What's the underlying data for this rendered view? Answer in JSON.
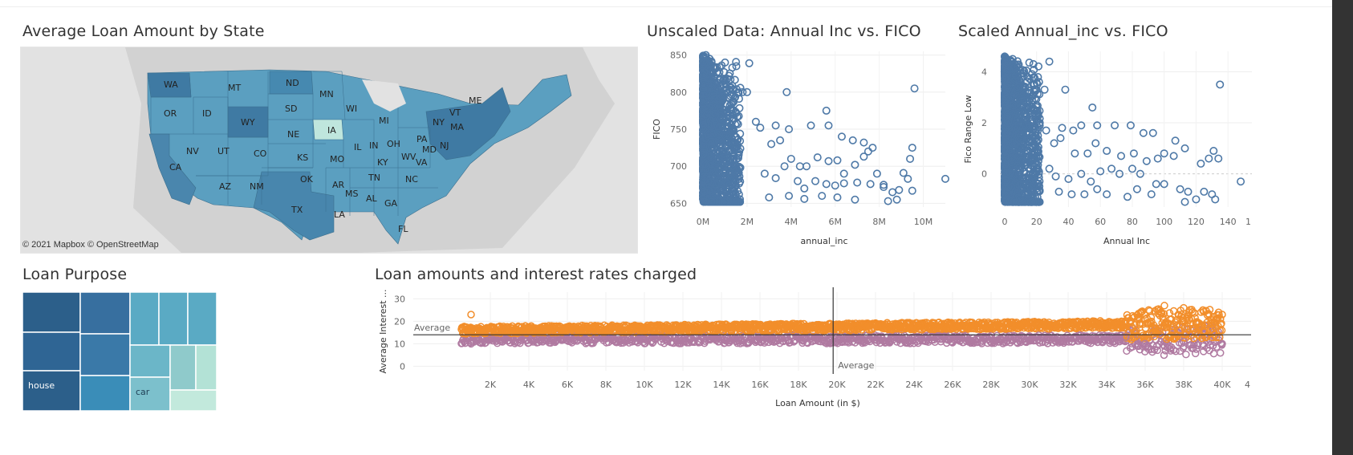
{
  "map": {
    "title": "Average Loan Amount by State",
    "credit": "© 2021 Mapbox  © OpenStreetMap",
    "states": [
      "WA",
      "MT",
      "ND",
      "MN",
      "ME",
      "OR",
      "ID",
      "WY",
      "SD",
      "WI",
      "MI",
      "NY",
      "VT",
      "MA",
      "NE",
      "IA",
      "IL",
      "IN",
      "OH",
      "PA",
      "NJ",
      "NV",
      "UT",
      "CO",
      "KS",
      "MO",
      "KY",
      "WV",
      "MD",
      "CA",
      "OK",
      "AR",
      "TN",
      "VA",
      "NC",
      "AZ",
      "NM",
      "MS",
      "AL",
      "GA",
      "TX",
      "LA",
      "FL"
    ],
    "highlight_state": "IA",
    "colors": {
      "base": "#5b9fc0",
      "dark": "#3f7aa3",
      "light": "#bfe6dd"
    }
  },
  "scatter_unscaled": {
    "title": "Unscaled Data: Annual Inc vs. FICO",
    "xlabel": "annual_inc",
    "ylabel": "FICO",
    "xticks": [
      "0M",
      "2M",
      "4M",
      "6M",
      "8M",
      "10M"
    ],
    "yticks": [
      "650",
      "700",
      "750",
      "800",
      "850"
    ]
  },
  "scatter_scaled": {
    "title": "Scaled Annual_inc vs. FICO",
    "xlabel": "Annual Inc",
    "ylabel": "Fico Range Low",
    "xticks": [
      "0",
      "20",
      "40",
      "60",
      "80",
      "100",
      "120",
      "140"
    ],
    "yticks": [
      "0",
      "2",
      "4"
    ],
    "extra_tick": "1"
  },
  "treemap": {
    "title": "Loan Purpose",
    "labels": {
      "house": "house",
      "car": "car"
    }
  },
  "line_chart": {
    "title": "Loan amounts and interest rates charged",
    "xlabel": "Loan Amount (in $)",
    "ylabel": "Average Interest ...",
    "xticks": [
      "2K",
      "4K",
      "6K",
      "8K",
      "10K",
      "12K",
      "14K",
      "16K",
      "18K",
      "20K",
      "22K",
      "24K",
      "26K",
      "28K",
      "30K",
      "32K",
      "34K",
      "36K",
      "38K",
      "40K"
    ],
    "yticks": [
      "0",
      "10",
      "20",
      "30"
    ],
    "ref_label_h": "Average",
    "ref_label_v": "Average",
    "extra_tick": "4"
  },
  "chart_data": [
    {
      "type": "scatter",
      "title": "Unscaled Data: Annual Inc vs. FICO",
      "xlabel": "annual_inc",
      "ylabel": "FICO",
      "xlim": [
        0,
        11000000
      ],
      "ylim": [
        650,
        850
      ],
      "series": [
        {
          "points": [
            [
              130000,
              850
            ],
            [
              300000,
              845
            ],
            [
              1000000,
              840
            ],
            [
              2100000,
              839
            ],
            [
              1800000,
              800
            ],
            [
              2000000,
              800
            ],
            [
              3800000,
              800
            ],
            [
              9600000,
              805
            ],
            [
              5600000,
              775
            ],
            [
              2400000,
              760
            ],
            [
              2600000,
              752
            ],
            [
              3300000,
              755
            ],
            [
              3900000,
              750
            ],
            [
              4900000,
              755
            ],
            [
              5700000,
              755
            ],
            [
              6300000,
              740
            ],
            [
              6800000,
              735
            ],
            [
              7300000,
              732
            ],
            [
              7700000,
              725
            ],
            [
              7500000,
              720
            ],
            [
              9500000,
              725
            ],
            [
              9400000,
              710
            ],
            [
              11000000,
              683
            ],
            [
              3100000,
              730
            ],
            [
              3500000,
              735
            ],
            [
              4000000,
              710
            ],
            [
              4400000,
              700
            ],
            [
              4700000,
              700
            ],
            [
              5200000,
              712
            ],
            [
              5700000,
              707
            ],
            [
              6100000,
              708
            ],
            [
              6400000,
              690
            ],
            [
              6900000,
              702
            ],
            [
              7300000,
              713
            ],
            [
              7900000,
              690
            ],
            [
              8200000,
              675
            ],
            [
              8900000,
              668
            ],
            [
              9300000,
              683
            ],
            [
              9100000,
              691
            ],
            [
              9500000,
              667
            ],
            [
              2800000,
              690
            ],
            [
              3300000,
              684
            ],
            [
              3700000,
              700
            ],
            [
              4300000,
              680
            ],
            [
              4600000,
              670
            ],
            [
              5100000,
              680
            ],
            [
              5600000,
              676
            ],
            [
              6000000,
              674
            ],
            [
              6400000,
              677
            ],
            [
              7000000,
              678
            ],
            [
              7600000,
              676
            ],
            [
              8200000,
              672
            ],
            [
              8600000,
              665
            ],
            [
              3000000,
              658
            ],
            [
              3900000,
              660
            ],
            [
              4600000,
              656
            ],
            [
              5400000,
              660
            ],
            [
              6100000,
              658
            ],
            [
              6900000,
              655
            ],
            [
              8400000,
              653
            ],
            [
              8800000,
              655
            ]
          ]
        }
      ]
    },
    {
      "type": "scatter",
      "title": "Scaled Annual_inc vs. FICO",
      "xlabel": "Annual Inc",
      "ylabel": "Fico Range Low",
      "xlim": [
        -5,
        150
      ],
      "ylim": [
        -1.2,
        4.7
      ],
      "series": [
        {
          "points": [
            [
              0,
              4.6
            ],
            [
              5,
              4.5
            ],
            [
              18,
              4.3
            ],
            [
              28,
              4.4
            ],
            [
              20,
              3.3
            ],
            [
              25,
              3.3
            ],
            [
              38,
              3.3
            ],
            [
              135,
              3.5
            ],
            [
              55,
              2.6
            ],
            [
              22,
              2.0
            ],
            [
              26,
              1.7
            ],
            [
              36,
              1.8
            ],
            [
              43,
              1.7
            ],
            [
              48,
              1.9
            ],
            [
              58,
              1.9
            ],
            [
              69,
              1.9
            ],
            [
              79,
              1.9
            ],
            [
              87,
              1.6
            ],
            [
              93,
              1.6
            ],
            [
              107,
              1.3
            ],
            [
              113,
              1.0
            ],
            [
              131,
              0.9
            ],
            [
              134,
              0.6
            ],
            [
              31,
              1.2
            ],
            [
              35,
              1.4
            ],
            [
              44,
              0.8
            ],
            [
              52,
              0.8
            ],
            [
              57,
              1.2
            ],
            [
              64,
              0.9
            ],
            [
              73,
              0.7
            ],
            [
              81,
              0.8
            ],
            [
              89,
              0.5
            ],
            [
              96,
              0.6
            ],
            [
              100,
              0.8
            ],
            [
              106,
              0.7
            ],
            [
              123,
              0.4
            ],
            [
              128,
              0.6
            ],
            [
              148,
              -0.3
            ],
            [
              28,
              0.2
            ],
            [
              32,
              -0.1
            ],
            [
              40,
              -0.2
            ],
            [
              48,
              0.0
            ],
            [
              54,
              -0.3
            ],
            [
              60,
              0.1
            ],
            [
              67,
              0.2
            ],
            [
              72,
              0.0
            ],
            [
              80,
              0.2
            ],
            [
              85,
              0.0
            ],
            [
              95,
              -0.4
            ],
            [
              100,
              -0.4
            ],
            [
              110,
              -0.6
            ],
            [
              115,
              -0.7
            ],
            [
              125,
              -0.7
            ],
            [
              130,
              -0.8
            ],
            [
              132,
              -1.0
            ],
            [
              34,
              -0.7
            ],
            [
              42,
              -0.8
            ],
            [
              50,
              -0.8
            ],
            [
              58,
              -0.6
            ],
            [
              64,
              -0.8
            ],
            [
              77,
              -0.9
            ],
            [
              83,
              -0.6
            ],
            [
              92,
              -0.8
            ],
            [
              113,
              -1.1
            ],
            [
              120,
              -1.0
            ]
          ]
        }
      ]
    },
    {
      "type": "scatter",
      "title": "Loan amounts and interest rates charged",
      "xlabel": "Loan Amount (in $)",
      "ylabel": "Average Interest ...",
      "xlim": [
        0,
        40500
      ],
      "ylim": [
        0,
        32
      ],
      "reference_lines": {
        "x": 19800,
        "y": 14
      },
      "series": [
        {
          "color": "#f28e2b",
          "description_points": [
            [
              1000,
              23
            ],
            [
              2000,
              17
            ],
            [
              5000,
              17
            ],
            [
              10000,
              17
            ],
            [
              15000,
              17
            ],
            [
              20000,
              18
            ],
            [
              25000,
              18
            ],
            [
              30000,
              19
            ],
            [
              33000,
              20
            ],
            [
              35000,
              19
            ],
            [
              36000,
              21
            ],
            [
              37000,
              27
            ],
            [
              38000,
              26
            ],
            [
              39000,
              25
            ],
            [
              40000,
              23
            ]
          ]
        },
        {
          "color": "#b07aa1",
          "description_points": [
            [
              1000,
              10
            ],
            [
              2000,
              12
            ],
            [
              5000,
              12
            ],
            [
              10000,
              12
            ],
            [
              15000,
              12
            ],
            [
              20000,
              13
            ],
            [
              25000,
              13
            ],
            [
              30000,
              13
            ],
            [
              33000,
              13
            ],
            [
              35000,
              13
            ],
            [
              36000,
              10
            ],
            [
              37000,
              9
            ],
            [
              38000,
              11
            ],
            [
              39000,
              9
            ],
            [
              40000,
              10
            ]
          ]
        }
      ]
    }
  ]
}
